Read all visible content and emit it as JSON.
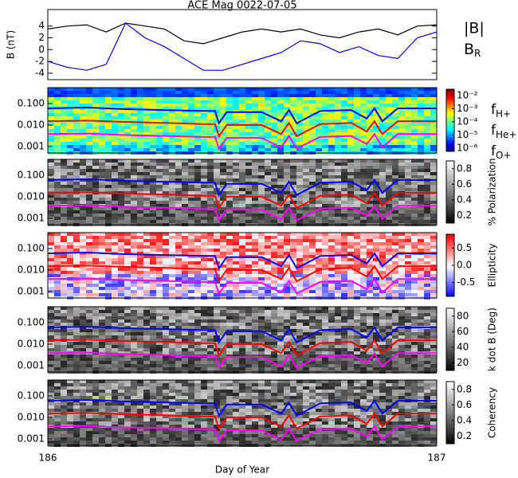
{
  "chart_data": [
    {
      "type": "line",
      "title": "ACE Mag 0022-07-05",
      "ylabel": "B (nT)",
      "x": [
        186,
        186.05,
        186.1,
        186.15,
        186.2,
        186.25,
        186.3,
        186.35,
        186.4,
        186.45,
        186.5,
        186.55,
        186.6,
        186.65,
        186.7,
        186.75,
        186.8,
        186.85,
        186.9,
        186.95,
        187
      ],
      "xlim": [
        186,
        187
      ],
      "ylim": [
        -5.1,
        6.8
      ],
      "yticks": [
        4,
        2,
        0,
        -2,
        -4
      ],
      "series": [
        {
          "name": "|B|",
          "color": "#000000",
          "values": [
            3.5,
            4.0,
            4.2,
            3.0,
            4.5,
            4.0,
            3.5,
            1.5,
            1.0,
            2.0,
            3.0,
            3.5,
            3.0,
            3.5,
            2.5,
            2.0,
            3.0,
            3.5,
            2.5,
            4.0,
            4.2
          ]
        },
        {
          "name": "BR",
          "color": "#0000ff",
          "values": [
            -2.0,
            -3.0,
            -3.5,
            -2.5,
            4.5,
            2.0,
            0.5,
            -1.5,
            -3.5,
            -3.5,
            -2.5,
            -1.5,
            -0.5,
            1.5,
            1.0,
            -0.5,
            0.5,
            -1.0,
            -1.5,
            2.0,
            3.0
          ]
        }
      ]
    },
    {
      "type": "spectrogram",
      "xlabel": "Day of Year",
      "xlim": [
        186,
        187
      ],
      "xticks": [
        186,
        187
      ],
      "ylim": [
        0.0005,
        0.55
      ],
      "log_y": true,
      "yticks": [
        {
          "value": 0.1,
          "label": "0.100"
        },
        {
          "value": 0.01,
          "label": "0.010"
        },
        {
          "value": 0.001,
          "label": "0.001"
        }
      ],
      "x": [
        186,
        186.1,
        186.2,
        186.3,
        186.4,
        186.43,
        186.44,
        186.46,
        186.55,
        186.6,
        186.62,
        186.64,
        186.7,
        186.78,
        186.82,
        186.84,
        186.86,
        186.9,
        187
      ],
      "series": [
        {
          "name": "fH+",
          "color": "#0000ff",
          "values": [
            0.06,
            0.065,
            0.055,
            0.05,
            0.045,
            0.045,
            0.012,
            0.04,
            0.04,
            0.015,
            0.05,
            0.012,
            0.045,
            0.05,
            0.02,
            0.06,
            0.015,
            0.06,
            0.06
          ]
        },
        {
          "name": "fHe+",
          "color": "#ff0000",
          "values": [
            0.015,
            0.016,
            0.014,
            0.0125,
            0.011,
            0.011,
            0.003,
            0.01,
            0.01,
            0.0038,
            0.0125,
            0.003,
            0.011,
            0.0125,
            0.005,
            0.015,
            0.0038,
            0.015,
            0.015
          ]
        },
        {
          "name": "fO+",
          "color": "#ff00ff",
          "values": [
            0.0038,
            0.004,
            0.0034,
            0.0031,
            0.0028,
            0.0028,
            0.0008,
            0.0025,
            0.0025,
            0.0009,
            0.0031,
            0.0008,
            0.0028,
            0.0031,
            0.0013,
            0.0038,
            0.0009,
            0.0038,
            0.0038
          ]
        }
      ],
      "panels": [
        {
          "colormap": "jet",
          "log_c": true,
          "clim": [
            5.7e-07,
            0.03
          ],
          "cticks": [
            {
              "value": 0.01,
              "label": "10⁻²"
            },
            {
              "value": 0.001,
              "label": "10⁻³"
            },
            {
              "value": 0.0001,
              "label": "10⁻⁴"
            },
            {
              "value": 1e-05,
              "label": "10⁻⁵"
            },
            {
              "value": 1e-06,
              "label": "10⁻⁶"
            }
          ]
        },
        {
          "colormap": "gray",
          "colorbar_label": "% Polarization",
          "clim": [
            0.1,
            0.9
          ],
          "cticks": [
            0.2,
            0.4,
            0.6,
            0.8
          ]
        },
        {
          "colormap": "bwr",
          "colorbar_label": "Ellipticity",
          "clim": [
            -0.9,
            0.9
          ],
          "cticks": [
            0.5,
            {
              "value": 0,
              "label": "0.0"
            },
            -0.5
          ]
        },
        {
          "colormap": "gray",
          "colorbar_label": "k dot B (Deg)",
          "clim": [
            10,
            90
          ],
          "cticks": [
            20,
            40,
            60,
            80
          ]
        },
        {
          "colormap": "gray",
          "colorbar_label": "Coherency",
          "clim": [
            0.1,
            0.9
          ],
          "cticks": [
            0.2,
            0.4,
            0.6,
            0.8
          ]
        }
      ]
    }
  ]
}
